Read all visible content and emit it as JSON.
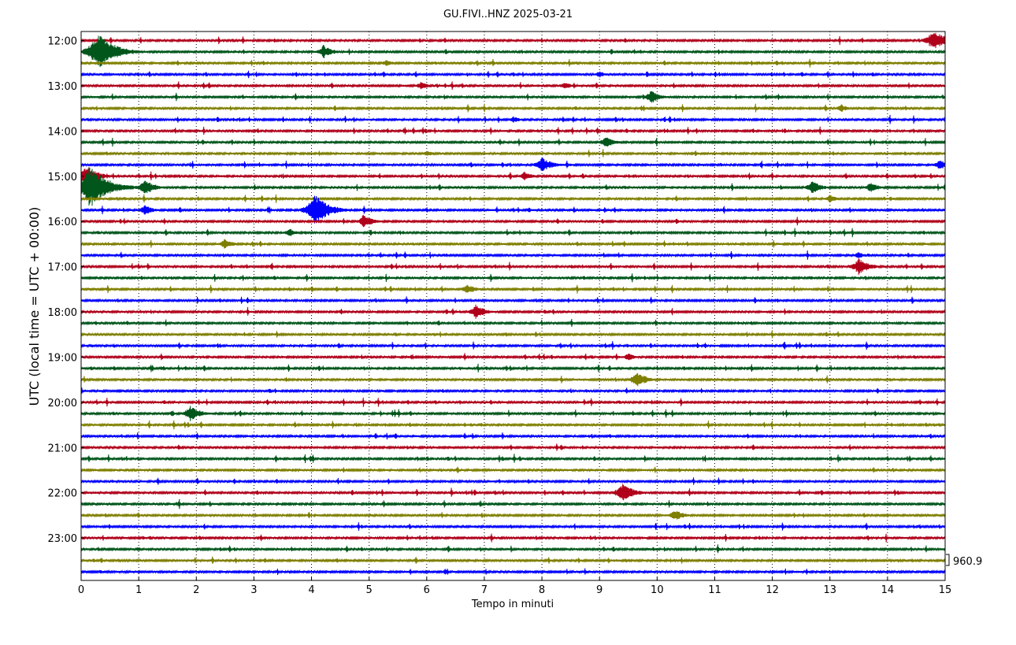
{
  "chart_data": {
    "type": "line",
    "title": "GU.FIVI..HNZ 2025-03-21",
    "xlabel": "Tempo in minuti",
    "ylabel": "UTC (local time = UTC + 00:00)",
    "xlim": [
      0,
      15
    ],
    "x_ticks": [
      "0",
      "1",
      "2",
      "3",
      "4",
      "5",
      "6",
      "7",
      "8",
      "9",
      "10",
      "11",
      "12",
      "13",
      "14",
      "15"
    ],
    "y_ticks": [
      "12:00",
      "13:00",
      "14:00",
      "15:00",
      "16:00",
      "17:00",
      "18:00",
      "19:00",
      "20:00",
      "21:00",
      "22:00",
      "23:00"
    ],
    "grid": "vertical dotted",
    "scale_label": "960.9",
    "series_colors": [
      "#b0001a",
      "#00561b",
      "#7f7f00",
      "#0000ff"
    ],
    "traces_start": "12:00",
    "trace_interval_minutes": 15,
    "trace_count": 48,
    "events": [
      {
        "trace": 0,
        "minute": 14.8,
        "amp": 1.6
      },
      {
        "trace": 1,
        "minute": 0.3,
        "amp": 2.8
      },
      {
        "trace": 1,
        "minute": 4.2,
        "amp": 1.0
      },
      {
        "trace": 2,
        "minute": 5.3,
        "amp": 0.5
      },
      {
        "trace": 3,
        "minute": 9.0,
        "amp": 0.5
      },
      {
        "trace": 4,
        "minute": 5.9,
        "amp": 0.6
      },
      {
        "trace": 4,
        "minute": 8.4,
        "amp": 0.6
      },
      {
        "trace": 5,
        "minute": 9.9,
        "amp": 1.0
      },
      {
        "trace": 6,
        "minute": 13.2,
        "amp": 0.6
      },
      {
        "trace": 7,
        "minute": 7.5,
        "amp": 0.5
      },
      {
        "trace": 9,
        "minute": 9.1,
        "amp": 0.9
      },
      {
        "trace": 10,
        "minute": 6.0,
        "amp": 0.5
      },
      {
        "trace": 11,
        "minute": 8.0,
        "amp": 1.2
      },
      {
        "trace": 11,
        "minute": 14.9,
        "amp": 0.8
      },
      {
        "trace": 12,
        "minute": 0.1,
        "amp": 1.6
      },
      {
        "trace": 12,
        "minute": 7.7,
        "amp": 0.7
      },
      {
        "trace": 13,
        "minute": 0.15,
        "amp": 3.2
      },
      {
        "trace": 13,
        "minute": 1.1,
        "amp": 1.2
      },
      {
        "trace": 13,
        "minute": 12.7,
        "amp": 1.0
      },
      {
        "trace": 13,
        "minute": 13.7,
        "amp": 0.8
      },
      {
        "trace": 14,
        "minute": 13.0,
        "amp": 0.6
      },
      {
        "trace": 15,
        "minute": 1.1,
        "amp": 0.8
      },
      {
        "trace": 15,
        "minute": 4.05,
        "amp": 2.3
      },
      {
        "trace": 16,
        "minute": 4.9,
        "amp": 1.0
      },
      {
        "trace": 17,
        "minute": 3.6,
        "amp": 0.6
      },
      {
        "trace": 18,
        "minute": 2.5,
        "amp": 0.8
      },
      {
        "trace": 19,
        "minute": 13.5,
        "amp": 0.5
      },
      {
        "trace": 20,
        "minute": 13.5,
        "amp": 1.3
      },
      {
        "trace": 22,
        "minute": 6.7,
        "amp": 0.8
      },
      {
        "trace": 24,
        "minute": 6.85,
        "amp": 1.1
      },
      {
        "trace": 28,
        "minute": 9.5,
        "amp": 0.6
      },
      {
        "trace": 30,
        "minute": 9.65,
        "amp": 1.2
      },
      {
        "trace": 33,
        "minute": 1.9,
        "amp": 1.2
      },
      {
        "trace": 40,
        "minute": 9.4,
        "amp": 1.4
      },
      {
        "trace": 42,
        "minute": 10.3,
        "amp": 0.9
      }
    ]
  }
}
